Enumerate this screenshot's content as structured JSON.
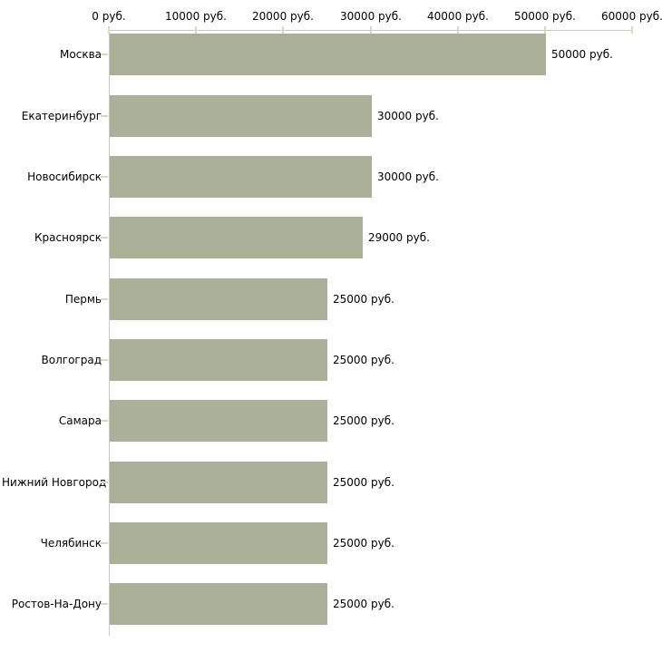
{
  "chart_data": {
    "type": "bar",
    "orientation": "horizontal",
    "title": "",
    "xlabel": "",
    "ylabel": "",
    "categories": [
      "Москва",
      "Екатеринбург",
      "Новосибирск",
      "Красноярск",
      "Пермь",
      "Волгоград",
      "Самара",
      "Нижний Новгород",
      "Челябинск",
      "Ростов-На-Дону"
    ],
    "values": [
      50000,
      30000,
      30000,
      29000,
      25000,
      25000,
      25000,
      25000,
      25000,
      25000
    ],
    "value_labels": [
      "50000 руб.",
      "30000 руб.",
      "30000 руб.",
      "29000 руб.",
      "25000 руб.",
      "25000 руб.",
      "25000 руб.",
      "25000 руб.",
      "25000 руб.",
      "25000 руб."
    ],
    "x_axis": {
      "position": "top",
      "min": 0,
      "max": 60000,
      "ticks": [
        0,
        10000,
        20000,
        30000,
        40000,
        50000,
        60000
      ],
      "tick_labels": [
        "0 руб.",
        "10000 руб.",
        "20000 руб.",
        "30000 руб.",
        "40000 руб.",
        "50000 руб.",
        "60000 руб."
      ]
    },
    "grid": false,
    "legend": false,
    "colors": {
      "bar": "#abb198",
      "axis_line": "#c8c8c8",
      "tick_mark": "#d9dabd",
      "text": "#000000",
      "background": "#ffffff"
    }
  }
}
